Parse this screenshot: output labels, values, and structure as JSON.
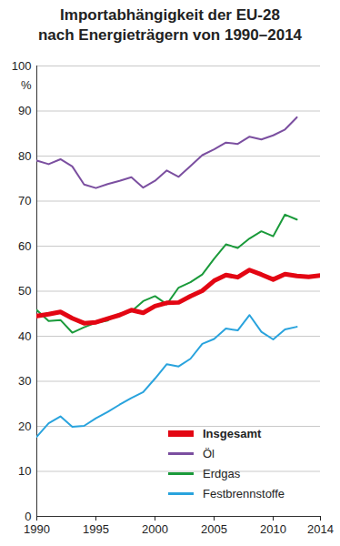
{
  "chart_data": {
    "type": "line",
    "title": "Importabhängigkeit der EU-28\nnach Energieträgern von 1990–2014",
    "y_label": "%",
    "x": [
      1990,
      1991,
      1992,
      1993,
      1994,
      1995,
      1996,
      1997,
      1998,
      1999,
      2000,
      2001,
      2002,
      2003,
      2004,
      2005,
      2006,
      2007,
      2008,
      2009,
      2010,
      2011,
      2012,
      2013,
      2014
    ],
    "series": [
      {
        "name": "Insgesamt",
        "color": "#e30613",
        "values": [
          44.5,
          44.9,
          45.4,
          44.0,
          42.9,
          43.1,
          43.9,
          44.7,
          45.8,
          45.2,
          46.7,
          47.4,
          47.5,
          48.9,
          50.1,
          52.3,
          53.6,
          53.1,
          54.7,
          53.7,
          52.6,
          53.8,
          53.4,
          53.2,
          53.5
        ]
      },
      {
        "name": "Öl",
        "color": "#7b4fa0",
        "values": [
          79.0,
          78.2,
          79.3,
          77.7,
          73.7,
          72.9,
          73.8,
          74.5,
          75.3,
          73.0,
          74.5,
          76.8,
          75.4,
          77.8,
          80.2,
          81.5,
          83.0,
          82.7,
          84.3,
          83.7,
          84.6,
          85.9,
          88.6,
          null,
          null
        ]
      },
      {
        "name": "Erdgas",
        "color": "#1a9a3a",
        "values": [
          45.8,
          43.4,
          43.6,
          40.8,
          42.0,
          43.0,
          43.5,
          45.0,
          45.5,
          47.8,
          48.9,
          47.1,
          50.8,
          52.0,
          53.7,
          57.2,
          60.4,
          59.6,
          61.7,
          63.3,
          62.2,
          67.0,
          65.9,
          null,
          null
        ]
      },
      {
        "name": "Festbrennstoffe",
        "color": "#29a3dd",
        "values": [
          17.7,
          20.7,
          22.2,
          19.9,
          20.1,
          21.8,
          23.2,
          24.8,
          26.3,
          27.6,
          30.6,
          33.8,
          33.3,
          35.0,
          38.3,
          39.4,
          41.7,
          41.3,
          44.7,
          41.0,
          39.3,
          41.5,
          42.1,
          null,
          null
        ]
      }
    ],
    "xlim": [
      1990,
      2014
    ],
    "xticks": [
      1990,
      1995,
      2000,
      2005,
      2010,
      2014
    ],
    "ylim": [
      0,
      100
    ],
    "yticks": [
      0,
      10,
      20,
      30,
      40,
      50,
      60,
      70,
      80,
      90,
      100
    ],
    "grid": true,
    "legend": "bottom-right"
  }
}
